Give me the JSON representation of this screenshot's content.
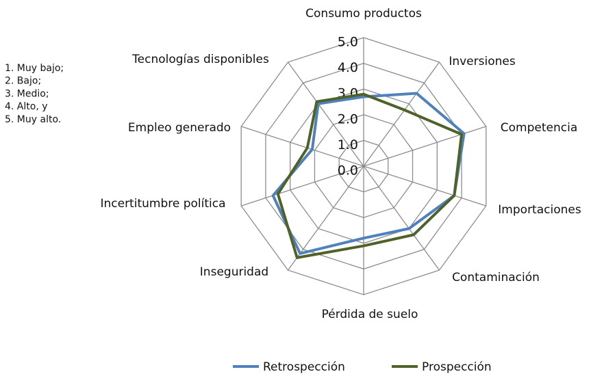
{
  "chart_data": {
    "type": "radar",
    "categories": [
      "Consumo productos",
      "Inversiones",
      "Competencia",
      "Importaciones",
      "Contaminación",
      "Pérdida de suelo",
      "Inseguridad",
      "Incertitumbre política",
      "Empleo generado",
      "Tecnologías disponibles"
    ],
    "series": [
      {
        "name": "Retrospección",
        "color": "#4f81bd",
        "values": [
          2.7,
          3.5,
          4.1,
          3.7,
          3.0,
          2.8,
          4.2,
          3.7,
          2.1,
          3.0
        ]
      },
      {
        "name": "Prospección",
        "color": "#4f6228",
        "values": [
          2.8,
          2.7,
          4.0,
          3.7,
          3.3,
          3.1,
          4.4,
          3.5,
          2.3,
          3.1
        ]
      }
    ],
    "ylim": [
      0,
      5
    ],
    "yticks": [
      {
        "value": 0,
        "label": "0.0"
      },
      {
        "value": 1,
        "label": "1.0"
      },
      {
        "value": 2,
        "label": "2.0"
      },
      {
        "value": 3,
        "label": "3.0"
      },
      {
        "value": 4,
        "label": "4.0"
      },
      {
        "value": 5,
        "label": "5.0"
      }
    ],
    "annotations": [
      "1. Muy bajo;",
      "2. Bajo;",
      "3. Medio;",
      "4. Alto, y",
      "5. Muy alto."
    ],
    "grid": true,
    "legend": "bottom"
  }
}
